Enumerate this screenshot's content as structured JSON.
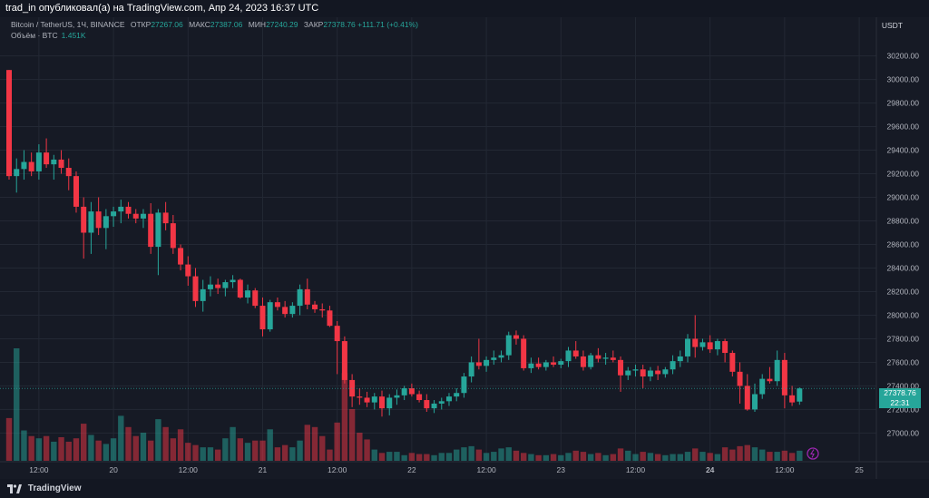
{
  "header": {
    "published": "trad_in опубликовал(а) на TradingView.com, Апр 24, 2023 16:37 UTC"
  },
  "legend": {
    "symbol": "Bitcoin / TetherUS, 1Ч, BINANCE",
    "open_label": "ОТКР",
    "open": "27267.06",
    "high_label": "МАКС",
    "high": "27387.06",
    "low_label": "МИН",
    "low": "27240.29",
    "close_label": "ЗАКР",
    "close": "27378.76",
    "change": "+111.71 (+0.41%)",
    "volume_label": "Объём · BTC",
    "volume": "1.451K"
  },
  "currency": "USDT",
  "price_tag": {
    "price": "27378.76",
    "countdown": "22:31"
  },
  "footer": {
    "brand": "TradingView"
  },
  "colors": {
    "up": "#26a69a",
    "down": "#f23645",
    "background": "#161a25"
  },
  "chart_data": {
    "type": "candlestick",
    "symbol": "BTCUSDT",
    "interval": "1h",
    "y_range": [
      26880,
      30320
    ],
    "y_ticks": [
      27000,
      27200,
      27400,
      27600,
      27800,
      28000,
      28200,
      28400,
      28600,
      28800,
      29000,
      29200,
      29400,
      29600,
      29800,
      30000,
      30200
    ],
    "x_tick_labels": [
      "12:00",
      "20",
      "12:00",
      "21",
      "12:00",
      "22",
      "12:00",
      "23",
      "12:00",
      "24",
      "12:00",
      "25"
    ],
    "x_tick_bars": [
      4,
      14,
      24,
      34,
      44,
      54,
      64,
      74,
      84,
      94,
      104,
      114
    ],
    "x_tick_bold": [
      false,
      false,
      false,
      false,
      false,
      false,
      false,
      false,
      false,
      true,
      false,
      false
    ],
    "grid": true,
    "current_price": 27378.76,
    "candles": [
      [
        30080,
        30080,
        29150,
        29180
      ],
      [
        29180,
        29330,
        29040,
        29240
      ],
      [
        29240,
        29400,
        29150,
        29300
      ],
      [
        29300,
        29380,
        29180,
        29220
      ],
      [
        29220,
        29450,
        29150,
        29380
      ],
      [
        29380,
        29500,
        29250,
        29280
      ],
      [
        29280,
        29360,
        29150,
        29320
      ],
      [
        29320,
        29400,
        29200,
        29250
      ],
      [
        29250,
        29330,
        29060,
        29180
      ],
      [
        29180,
        29220,
        28870,
        28920
      ],
      [
        28920,
        29000,
        28480,
        28700
      ],
      [
        28700,
        28960,
        28520,
        28880
      ],
      [
        28880,
        29000,
        28680,
        28740
      ],
      [
        28740,
        28900,
        28560,
        28840
      ],
      [
        28840,
        28920,
        28750,
        28880
      ],
      [
        28880,
        28980,
        28780,
        28920
      ],
      [
        28920,
        28960,
        28820,
        28860
      ],
      [
        28860,
        28900,
        28780,
        28820
      ],
      [
        28820,
        28900,
        28740,
        28860
      ],
      [
        28860,
        28950,
        28520,
        28580
      ],
      [
        28580,
        28900,
        28340,
        28870
      ],
      [
        28870,
        28960,
        28720,
        28780
      ],
      [
        28780,
        28850,
        28520,
        28570
      ],
      [
        28570,
        28600,
        28380,
        28430
      ],
      [
        28430,
        28500,
        28250,
        28330
      ],
      [
        28330,
        28400,
        28070,
        28120
      ],
      [
        28120,
        28300,
        28030,
        28220
      ],
      [
        28220,
        28330,
        28160,
        28260
      ],
      [
        28260,
        28310,
        28180,
        28230
      ],
      [
        28230,
        28300,
        28160,
        28280
      ],
      [
        28280,
        28340,
        28230,
        28300
      ],
      [
        28300,
        28310,
        28140,
        28150
      ],
      [
        28150,
        28260,
        28100,
        28210
      ],
      [
        28210,
        28230,
        28060,
        28080
      ],
      [
        28080,
        28150,
        27820,
        27880
      ],
      [
        27880,
        28130,
        27860,
        28110
      ],
      [
        28110,
        28150,
        28040,
        28070
      ],
      [
        28070,
        28120,
        27980,
        28010
      ],
      [
        28010,
        28110,
        27980,
        28080
      ],
      [
        28080,
        28260,
        28000,
        28220
      ],
      [
        28220,
        28310,
        28050,
        28090
      ],
      [
        28090,
        28120,
        28020,
        28050
      ],
      [
        28050,
        28100,
        27980,
        28040
      ],
      [
        28040,
        28080,
        27900,
        27910
      ],
      [
        27910,
        27950,
        27500,
        27780
      ],
      [
        27780,
        27820,
        27420,
        27450
      ],
      [
        27450,
        27500,
        27220,
        27310
      ],
      [
        27310,
        27380,
        27240,
        27300
      ],
      [
        27300,
        27350,
        27220,
        27260
      ],
      [
        27260,
        27340,
        27200,
        27310
      ],
      [
        27310,
        27360,
        27140,
        27210
      ],
      [
        27210,
        27330,
        27150,
        27300
      ],
      [
        27300,
        27370,
        27240,
        27320
      ],
      [
        27320,
        27400,
        27280,
        27380
      ],
      [
        27380,
        27420,
        27310,
        27330
      ],
      [
        27330,
        27360,
        27260,
        27280
      ],
      [
        27280,
        27330,
        27180,
        27210
      ],
      [
        27210,
        27280,
        27170,
        27250
      ],
      [
        27250,
        27300,
        27200,
        27270
      ],
      [
        27270,
        27340,
        27230,
        27310
      ],
      [
        27310,
        27380,
        27270,
        27340
      ],
      [
        27340,
        27510,
        27300,
        27480
      ],
      [
        27480,
        27650,
        27430,
        27600
      ],
      [
        27600,
        27800,
        27540,
        27570
      ],
      [
        27570,
        27650,
        27520,
        27620
      ],
      [
        27620,
        27700,
        27580,
        27640
      ],
      [
        27640,
        27700,
        27600,
        27660
      ],
      [
        27660,
        27860,
        27620,
        27830
      ],
      [
        27830,
        27870,
        27750,
        27800
      ],
      [
        27800,
        27830,
        27530,
        27550
      ],
      [
        27550,
        27640,
        27510,
        27590
      ],
      [
        27590,
        27640,
        27540,
        27560
      ],
      [
        27560,
        27620,
        27530,
        27600
      ],
      [
        27600,
        27650,
        27560,
        27580
      ],
      [
        27580,
        27630,
        27550,
        27610
      ],
      [
        27610,
        27730,
        27560,
        27700
      ],
      [
        27700,
        27780,
        27630,
        27650
      ],
      [
        27650,
        27700,
        27530,
        27560
      ],
      [
        27560,
        27680,
        27540,
        27660
      ],
      [
        27660,
        27720,
        27600,
        27630
      ],
      [
        27630,
        27680,
        27580,
        27640
      ],
      [
        27640,
        27700,
        27600,
        27620
      ],
      [
        27620,
        27650,
        27350,
        27490
      ],
      [
        27490,
        27560,
        27450,
        27530
      ],
      [
        27530,
        27580,
        27480,
        27540
      ],
      [
        27540,
        27580,
        27380,
        27480
      ],
      [
        27480,
        27560,
        27440,
        27530
      ],
      [
        27530,
        27570,
        27450,
        27500
      ],
      [
        27500,
        27560,
        27470,
        27540
      ],
      [
        27540,
        27660,
        27500,
        27610
      ],
      [
        27610,
        27700,
        27560,
        27650
      ],
      [
        27650,
        27840,
        27600,
        27800
      ],
      [
        27800,
        28000,
        27640,
        27730
      ],
      [
        27730,
        27800,
        27700,
        27770
      ],
      [
        27770,
        27830,
        27680,
        27710
      ],
      [
        27710,
        27800,
        27660,
        27780
      ],
      [
        27780,
        27800,
        27600,
        27680
      ],
      [
        27680,
        27700,
        27480,
        27520
      ],
      [
        27520,
        27600,
        27250,
        27400
      ],
      [
        27400,
        27500,
        27190,
        27200
      ],
      [
        27200,
        27420,
        27180,
        27330
      ],
      [
        27330,
        27500,
        27290,
        27460
      ],
      [
        27460,
        27560,
        27420,
        27440
      ],
      [
        27440,
        27700,
        27400,
        27620
      ],
      [
        27620,
        27680,
        27210,
        27320
      ],
      [
        27320,
        27400,
        27230,
        27260
      ],
      [
        27267.06,
        27387.06,
        27240.29,
        27378.76
      ]
    ],
    "volumes": [
      0.38,
      1.0,
      0.27,
      0.22,
      0.2,
      0.22,
      0.17,
      0.21,
      0.17,
      0.2,
      0.33,
      0.23,
      0.18,
      0.15,
      0.2,
      0.4,
      0.3,
      0.22,
      0.25,
      0.18,
      0.37,
      0.3,
      0.2,
      0.28,
      0.16,
      0.14,
      0.12,
      0.12,
      0.1,
      0.2,
      0.3,
      0.2,
      0.16,
      0.18,
      0.18,
      0.28,
      0.12,
      0.14,
      0.12,
      0.18,
      0.32,
      0.3,
      0.22,
      0.1,
      0.34,
      0.78,
      0.46,
      0.25,
      0.19,
      0.1,
      0.07,
      0.08,
      0.08,
      0.05,
      0.07,
      0.06,
      0.06,
      0.05,
      0.07,
      0.07,
      0.1,
      0.12,
      0.13,
      0.1,
      0.07,
      0.08,
      0.11,
      0.12,
      0.09,
      0.07,
      0.06,
      0.05,
      0.05,
      0.06,
      0.05,
      0.07,
      0.09,
      0.08,
      0.06,
      0.07,
      0.05,
      0.06,
      0.11,
      0.09,
      0.06,
      0.08,
      0.07,
      0.06,
      0.05,
      0.06,
      0.06,
      0.08,
      0.11,
      0.08,
      0.07,
      0.06,
      0.12,
      0.1,
      0.13,
      0.14,
      0.12,
      0.1,
      0.08,
      0.08,
      0.09,
      0.07,
      0.09
    ]
  }
}
